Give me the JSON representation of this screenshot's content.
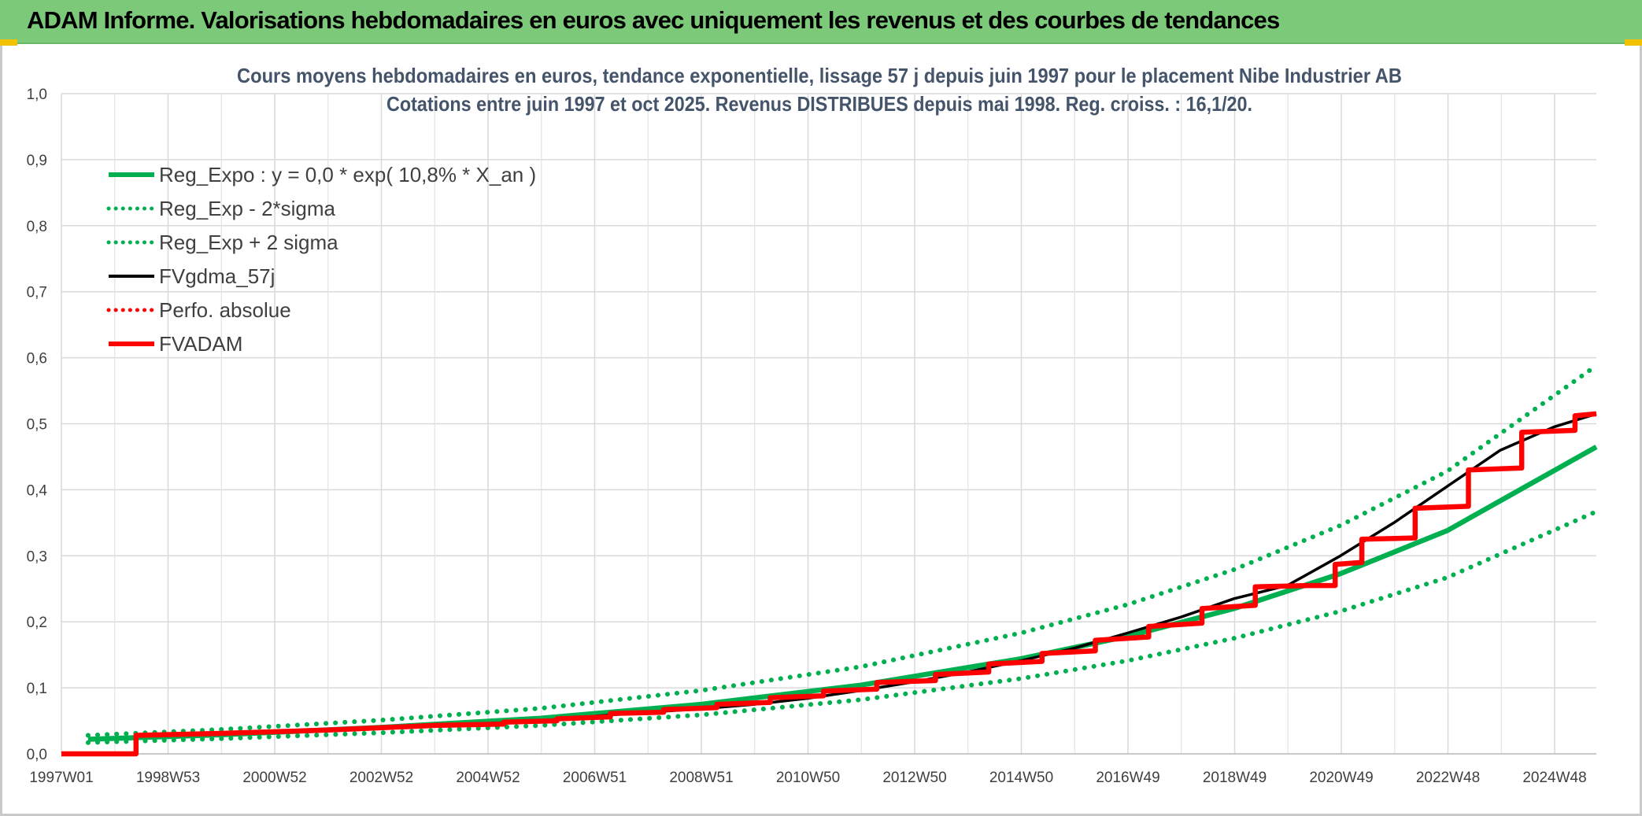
{
  "banner": {
    "title": "ADAM Informe. Valorisations hebdomadaires en euros avec uniquement les revenus et des courbes de tendances"
  },
  "chart_data": {
    "type": "line",
    "title": [
      "Cours moyens hebdomadaires en euros, tendance exponentielle, lissage 57 j depuis juin 1997 pour le placement Nibe Industrier AB",
      "Cotations entre juin 1997 et oct 2025. Revenus DISTRIBUES depuis mai 1998. Reg. croiss. : 16,1/20."
    ],
    "xlabel": "",
    "ylabel": "",
    "categories": [
      "1997W01",
      "1998W53",
      "2000W52",
      "2002W52",
      "2004W52",
      "2006W51",
      "2008W51",
      "2010W50",
      "2012W50",
      "2014W50",
      "2016W49",
      "2018W49",
      "2020W49",
      "2022W48",
      "2024W48"
    ],
    "x_range": [
      1997.0,
      2025.8
    ],
    "y_ticks": [
      "0,0",
      "0,1",
      "0,2",
      "0,3",
      "0,4",
      "0,5",
      "0,6",
      "0,7",
      "0,8",
      "0,9",
      "1,0"
    ],
    "ylim": [
      0,
      1.0
    ],
    "grid": true,
    "legend_position": "top-left",
    "series": [
      {
        "name": "Reg_Expo : y = 0,0 * exp( 10,8% *  X_an )",
        "color": "#00b050",
        "style": "solid",
        "points": [
          [
            1997.5,
            0.022
          ],
          [
            2000,
            0.029
          ],
          [
            2003,
            0.04
          ],
          [
            2006,
            0.054
          ],
          [
            2009,
            0.075
          ],
          [
            2012,
            0.104
          ],
          [
            2015,
            0.144
          ],
          [
            2017,
            0.178
          ],
          [
            2019,
            0.22
          ],
          [
            2021,
            0.273
          ],
          [
            2023,
            0.338
          ],
          [
            2025.8,
            0.465
          ]
        ]
      },
      {
        "name": "Reg_Exp - 2*sigma",
        "color": "#00b050",
        "style": "dotted",
        "points": [
          [
            1997.5,
            0.017
          ],
          [
            2000,
            0.023
          ],
          [
            2003,
            0.032
          ],
          [
            2006,
            0.043
          ],
          [
            2009,
            0.059
          ],
          [
            2012,
            0.082
          ],
          [
            2015,
            0.114
          ],
          [
            2017,
            0.141
          ],
          [
            2019,
            0.175
          ],
          [
            2021,
            0.216
          ],
          [
            2023,
            0.267
          ],
          [
            2025.8,
            0.367
          ]
        ]
      },
      {
        "name": "Reg_Exp + 2 sigma",
        "color": "#00b050",
        "style": "dotted",
        "points": [
          [
            1997.5,
            0.028
          ],
          [
            2000,
            0.037
          ],
          [
            2003,
            0.051
          ],
          [
            2006,
            0.069
          ],
          [
            2009,
            0.096
          ],
          [
            2012,
            0.132
          ],
          [
            2015,
            0.183
          ],
          [
            2017,
            0.226
          ],
          [
            2019,
            0.279
          ],
          [
            2021,
            0.346
          ],
          [
            2023,
            0.428
          ],
          [
            2025.8,
            0.588
          ]
        ]
      },
      {
        "name": "FVgdma_57j",
        "color": "#000000",
        "style": "solid",
        "points": [
          [
            1998.4,
            0.027
          ],
          [
            2000,
            0.03
          ],
          [
            2002,
            0.035
          ],
          [
            2004,
            0.042
          ],
          [
            2006,
            0.05
          ],
          [
            2007,
            0.057
          ],
          [
            2008,
            0.063
          ],
          [
            2009,
            0.068
          ],
          [
            2010,
            0.075
          ],
          [
            2011,
            0.084
          ],
          [
            2012,
            0.096
          ],
          [
            2013,
            0.109
          ],
          [
            2014,
            0.124
          ],
          [
            2015,
            0.141
          ],
          [
            2016,
            0.16
          ],
          [
            2017,
            0.183
          ],
          [
            2018,
            0.207
          ],
          [
            2019,
            0.235
          ],
          [
            2020,
            0.255
          ],
          [
            2021,
            0.3
          ],
          [
            2022,
            0.35
          ],
          [
            2023,
            0.405
          ],
          [
            2024,
            0.46
          ],
          [
            2025,
            0.495
          ],
          [
            2025.8,
            0.515
          ]
        ]
      },
      {
        "name": "Perfo. absolue",
        "color": "#ff0000",
        "style": "dotted",
        "points": []
      },
      {
        "name": "FVADAM",
        "color": "#ff0000",
        "style": "step",
        "points": [
          [
            1997.0,
            0.0
          ],
          [
            1998.4,
            0.0
          ],
          [
            1998.4,
            0.028
          ],
          [
            2000.0,
            0.031
          ],
          [
            2002.0,
            0.036
          ],
          [
            2004.0,
            0.043
          ],
          [
            2005.3,
            0.045
          ],
          [
            2005.3,
            0.048
          ],
          [
            2006.3,
            0.05
          ],
          [
            2006.3,
            0.053
          ],
          [
            2007.3,
            0.056
          ],
          [
            2007.3,
            0.061
          ],
          [
            2008.3,
            0.063
          ],
          [
            2008.3,
            0.067
          ],
          [
            2009.3,
            0.07
          ],
          [
            2009.3,
            0.075
          ],
          [
            2010.3,
            0.078
          ],
          [
            2010.3,
            0.085
          ],
          [
            2011.3,
            0.088
          ],
          [
            2011.3,
            0.095
          ],
          [
            2012.3,
            0.098
          ],
          [
            2012.3,
            0.108
          ],
          [
            2013.4,
            0.111
          ],
          [
            2013.4,
            0.12
          ],
          [
            2014.4,
            0.124
          ],
          [
            2014.4,
            0.136
          ],
          [
            2015.4,
            0.14
          ],
          [
            2015.4,
            0.152
          ],
          [
            2016.4,
            0.156
          ],
          [
            2016.4,
            0.172
          ],
          [
            2017.4,
            0.177
          ],
          [
            2017.4,
            0.193
          ],
          [
            2018.4,
            0.198
          ],
          [
            2018.4,
            0.22
          ],
          [
            2019.4,
            0.225
          ],
          [
            2019.4,
            0.253
          ],
          [
            2020.4,
            0.255
          ],
          [
            2020.9,
            0.255
          ],
          [
            2020.9,
            0.287
          ],
          [
            2021.4,
            0.29
          ],
          [
            2021.4,
            0.325
          ],
          [
            2022.4,
            0.327
          ],
          [
            2022.4,
            0.372
          ],
          [
            2023.4,
            0.375
          ],
          [
            2023.4,
            0.43
          ],
          [
            2024.4,
            0.433
          ],
          [
            2024.4,
            0.487
          ],
          [
            2025.4,
            0.49
          ],
          [
            2025.4,
            0.512
          ],
          [
            2025.8,
            0.515
          ]
        ]
      }
    ]
  }
}
